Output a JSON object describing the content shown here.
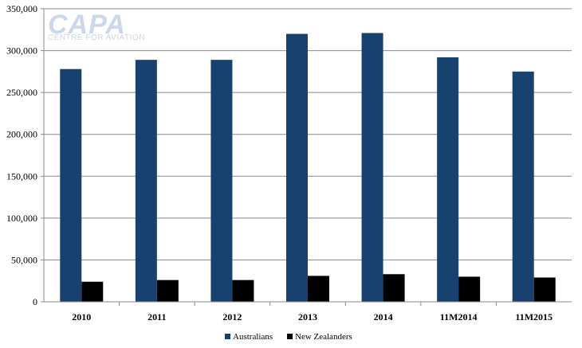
{
  "logo": {
    "main": "CAPA",
    "sub": "CENTRE FOR AVIATION"
  },
  "chart_data": {
    "type": "bar",
    "categories": [
      "2010",
      "2011",
      "2012",
      "2013",
      "2014",
      "11M2014",
      "11M2015"
    ],
    "series": [
      {
        "name": "Australians",
        "color": "#17426f",
        "values": [
          278000,
          289000,
          289000,
          320000,
          321000,
          292000,
          275000
        ]
      },
      {
        "name": "New Zealanders",
        "color": "#000000",
        "values": [
          24000,
          26000,
          26000,
          31000,
          33000,
          30000,
          29000
        ]
      }
    ],
    "ylim": [
      0,
      350000
    ],
    "yticks": [
      "0",
      "50,000",
      "100,000",
      "150,000",
      "200,000",
      "250,000",
      "300,000",
      "350,000"
    ],
    "grid": true,
    "legend_position": "bottom-center",
    "title": "",
    "xlabel": "",
    "ylabel": ""
  }
}
